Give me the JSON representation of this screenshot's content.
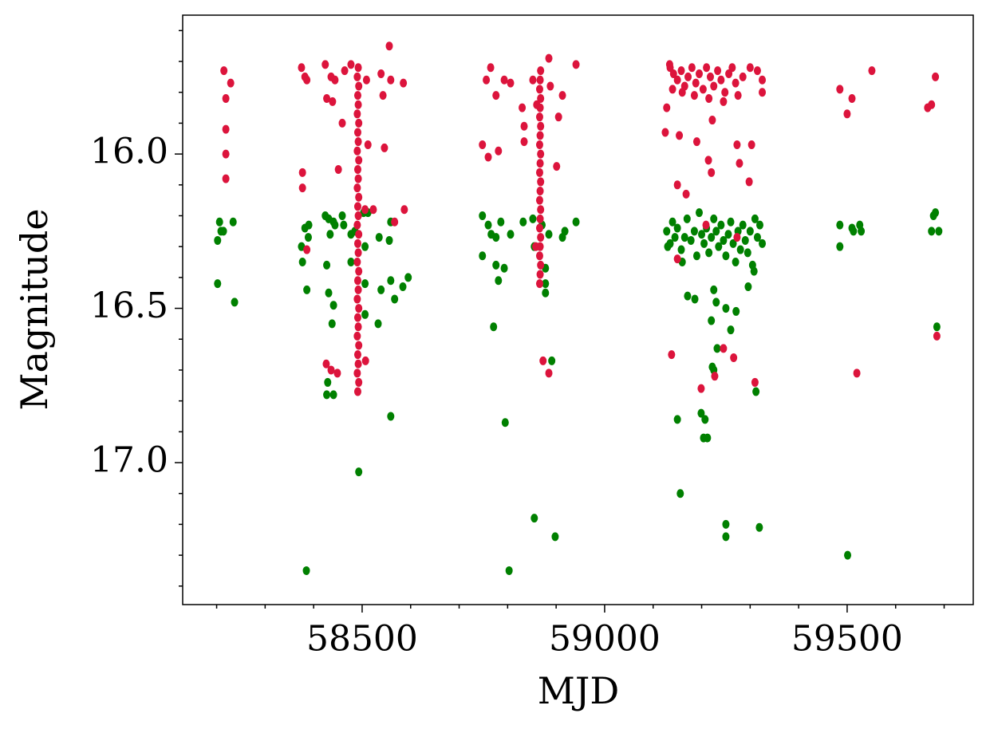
{
  "chart_data": {
    "type": "scatter",
    "xlabel": "MJD",
    "ylabel": "Magnitude",
    "xlim": [
      58130,
      59760
    ],
    "ylim": [
      17.46,
      15.55
    ],
    "xticks": [
      58500,
      59000,
      59500
    ],
    "xticks_minor": [
      58200,
      58300,
      58400,
      58600,
      58700,
      58800,
      58900,
      59100,
      59200,
      59300,
      59400,
      59600,
      59700
    ],
    "yticks": [
      {
        "value": 16.0,
        "label": "16.0"
      },
      {
        "value": 16.5,
        "label": "16.5"
      },
      {
        "value": 17.0,
        "label": "17.0"
      }
    ],
    "yticks_minor": [
      15.6,
      15.7,
      15.8,
      15.9,
      16.1,
      16.2,
      16.3,
      16.4,
      16.6,
      16.7,
      16.8,
      16.9,
      17.1,
      17.2,
      17.3,
      17.4
    ],
    "grid": false,
    "series": [
      {
        "color": "#008000",
        "x": [
          58206,
          58209,
          58202,
          58214,
          58234,
          58202,
          58237,
          58375,
          58382,
          58390,
          58377,
          58389,
          58386,
          58424,
          58431,
          58441,
          58434,
          58444,
          58427,
          58431,
          58441,
          58438,
          58429,
          58427,
          58441,
          58459,
          58462,
          58477,
          58485,
          58477,
          58503,
          58512,
          58506,
          58506,
          58506,
          58493,
          58535,
          58559,
          58556,
          58539,
          58533,
          58559,
          58567,
          58584,
          58595,
          58559,
          58385,
          58748,
          58760,
          58766,
          58786,
          58776,
          58748,
          58776,
          58781,
          58793,
          58771,
          58806,
          58832,
          58852,
          58871,
          58885,
          58855,
          58878,
          58878,
          58878,
          58913,
          58918,
          58941,
          58795,
          58891,
          58855,
          58898,
          58803,
          59171,
          59186,
          59220,
          59225,
          59230,
          59232,
          59222,
          59225,
          59250,
          59260,
          59271,
          59296,
          59312,
          59308,
          59150,
          59199,
          59207,
          59204,
          59212,
          59156,
          59250,
          59250,
          59319,
          59128,
          59135,
          59140,
          59145,
          59150,
          59158,
          59165,
          59170,
          59178,
          59185,
          59190,
          59195,
          59200,
          59205,
          59210,
          59215,
          59220,
          59225,
          59230,
          59235,
          59240,
          59245,
          59250,
          59255,
          59260,
          59265,
          59270,
          59275,
          59280,
          59285,
          59290,
          59295,
          59300,
          59305,
          59310,
          59315,
          59320,
          59325,
          59130,
          59160,
          59485,
          59510,
          59526,
          59513,
          59529,
          59485,
          59501,
          59678,
          59682,
          59674,
          59689,
          59685
        ],
        "values": [
          16.22,
          16.25,
          16.28,
          16.25,
          16.22,
          16.42,
          16.48,
          16.3,
          16.24,
          16.23,
          16.35,
          16.27,
          16.44,
          16.2,
          16.21,
          16.22,
          16.26,
          16.23,
          16.36,
          16.45,
          16.49,
          16.55,
          16.74,
          16.78,
          16.78,
          16.2,
          16.23,
          16.26,
          16.25,
          16.35,
          16.19,
          16.19,
          16.3,
          16.42,
          16.52,
          17.03,
          16.27,
          16.22,
          16.28,
          16.44,
          16.55,
          16.41,
          16.47,
          16.43,
          16.4,
          16.85,
          17.35,
          16.2,
          16.23,
          16.26,
          16.22,
          16.27,
          16.33,
          16.36,
          16.41,
          16.37,
          16.56,
          16.26,
          16.22,
          16.21,
          16.23,
          16.26,
          16.3,
          16.37,
          16.42,
          16.45,
          16.27,
          16.25,
          16.22,
          16.87,
          16.67,
          17.18,
          17.24,
          17.35,
          16.46,
          16.47,
          16.54,
          16.44,
          16.48,
          16.63,
          16.69,
          16.7,
          16.5,
          16.57,
          16.51,
          16.43,
          16.77,
          16.38,
          16.86,
          16.84,
          16.86,
          16.92,
          16.92,
          17.1,
          17.2,
          17.24,
          17.21,
          16.25,
          16.29,
          16.22,
          16.27,
          16.24,
          16.31,
          16.27,
          16.21,
          16.28,
          16.25,
          16.33,
          16.19,
          16.26,
          16.29,
          16.24,
          16.32,
          16.27,
          16.21,
          16.25,
          16.3,
          16.23,
          16.28,
          16.33,
          16.26,
          16.22,
          16.29,
          16.35,
          16.25,
          16.31,
          16.23,
          16.28,
          16.32,
          16.25,
          16.36,
          16.21,
          16.27,
          16.23,
          16.29,
          16.3,
          16.35,
          16.23,
          16.24,
          16.23,
          16.25,
          16.25,
          16.3,
          17.3,
          16.2,
          16.19,
          16.25,
          16.25,
          16.56
        ]
      },
      {
        "color": "#dc143c",
        "x": [
          58215,
          58229,
          58219,
          58219,
          58219,
          58219,
          58375,
          58382,
          58386,
          58377,
          58377,
          58386,
          58424,
          58436,
          58444,
          58464,
          58477,
          58427,
          58439,
          58459,
          58451,
          58426,
          58436,
          58449,
          58492,
          58490,
          58493,
          58491,
          58492,
          58490,
          58493,
          58491,
          58492,
          58490,
          58493,
          58491,
          58492,
          58490,
          58493,
          58491,
          58492,
          58490,
          58493,
          58491,
          58492,
          58490,
          58493,
          58491,
          58492,
          58490,
          58493,
          58491,
          58492,
          58490,
          58493,
          58491,
          58492,
          58490,
          58493,
          58491,
          58509,
          58512,
          58506,
          58523,
          58539,
          58556,
          58559,
          58543,
          58546,
          58585,
          58587,
          58567,
          58507,
          58748,
          58760,
          58756,
          58765,
          58781,
          58776,
          58793,
          58806,
          58830,
          58834,
          58834,
          58852,
          58860,
          58868,
          58885,
          58888,
          58905,
          58913,
          58941,
          58901,
          58858,
          58873,
          58885,
          58867,
          58866,
          58868,
          58867,
          58866,
          58868,
          58867,
          58866,
          58868,
          58867,
          58866,
          58868,
          58867,
          58866,
          58868,
          58867,
          58866,
          58868,
          58867,
          58866,
          58868,
          58867,
          58866,
          59125,
          59128,
          59134,
          59150,
          59154,
          59168,
          59138,
          59150,
          59190,
          59209,
          59214,
          59220,
          59222,
          59199,
          59227,
          59245,
          59266,
          59273,
          59278,
          59298,
          59303,
          59310,
          59273,
          59135,
          59142,
          59150,
          59158,
          59165,
          59172,
          59180,
          59188,
          59195,
          59203,
          59210,
          59218,
          59225,
          59233,
          59240,
          59248,
          59256,
          59263,
          59270,
          59285,
          59300,
          59315,
          59325,
          59140,
          59160,
          59185,
          59215,
          59245,
          59275,
          59325,
          59485,
          59510,
          59500,
          59551,
          59520,
          59666,
          59674,
          59682,
          59685
        ],
        "values": [
          15.73,
          15.77,
          15.82,
          15.92,
          16.0,
          16.08,
          15.72,
          15.75,
          15.76,
          16.06,
          16.11,
          16.31,
          15.71,
          15.75,
          15.76,
          15.73,
          15.71,
          15.82,
          15.83,
          15.9,
          16.05,
          16.68,
          16.7,
          16.71,
          15.72,
          15.75,
          15.78,
          15.81,
          15.84,
          15.87,
          15.9,
          15.93,
          15.96,
          15.99,
          16.02,
          16.05,
          16.08,
          16.11,
          16.14,
          16.17,
          16.2,
          16.23,
          16.26,
          16.29,
          16.32,
          16.35,
          16.38,
          16.41,
          16.44,
          16.47,
          16.5,
          16.53,
          16.56,
          16.59,
          16.62,
          16.65,
          16.68,
          16.71,
          16.74,
          16.77,
          15.76,
          15.97,
          16.18,
          16.18,
          15.74,
          15.65,
          15.76,
          15.81,
          15.98,
          15.77,
          16.18,
          16.22,
          16.67,
          15.97,
          16.01,
          15.76,
          15.72,
          15.99,
          15.81,
          15.76,
          15.77,
          15.85,
          15.91,
          15.96,
          15.76,
          15.84,
          15.73,
          15.69,
          15.78,
          15.88,
          15.81,
          15.71,
          16.04,
          16.3,
          16.67,
          16.71,
          15.76,
          15.79,
          15.82,
          15.85,
          15.88,
          15.91,
          15.94,
          15.97,
          16.0,
          16.03,
          16.06,
          16.09,
          16.12,
          16.15,
          16.18,
          16.21,
          16.24,
          16.27,
          16.3,
          16.33,
          16.36,
          16.39,
          16.42,
          15.93,
          15.85,
          15.71,
          16.1,
          15.94,
          16.13,
          16.65,
          16.34,
          15.96,
          16.23,
          16.02,
          16.06,
          15.89,
          16.76,
          16.72,
          16.63,
          16.66,
          15.97,
          16.03,
          16.09,
          15.97,
          16.74,
          16.27,
          15.72,
          15.74,
          15.76,
          15.73,
          15.78,
          15.75,
          15.72,
          15.77,
          15.74,
          15.79,
          15.72,
          15.75,
          15.78,
          15.73,
          15.76,
          15.8,
          15.74,
          15.72,
          15.77,
          15.75,
          15.72,
          15.73,
          15.76,
          15.79,
          15.8,
          15.81,
          15.82,
          15.83,
          15.81,
          15.8,
          15.79,
          15.82,
          15.87,
          15.73,
          16.71,
          15.85,
          15.84,
          15.75,
          16.59
        ]
      }
    ]
  }
}
